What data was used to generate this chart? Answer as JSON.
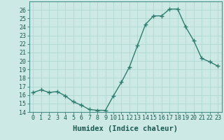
{
  "x": [
    0,
    1,
    2,
    3,
    4,
    5,
    6,
    7,
    8,
    9,
    10,
    11,
    12,
    13,
    14,
    15,
    16,
    17,
    18,
    19,
    20,
    21,
    22,
    23
  ],
  "y": [
    16.3,
    16.6,
    16.3,
    16.4,
    15.9,
    15.2,
    14.8,
    14.3,
    14.2,
    14.2,
    15.9,
    17.5,
    19.3,
    21.8,
    24.3,
    25.3,
    25.3,
    26.1,
    26.1,
    24.0,
    22.4,
    20.3,
    19.9,
    19.4
  ],
  "line_color": "#2e7d6e",
  "marker": "+",
  "markersize": 4,
  "linewidth": 1.0,
  "bg_color": "#cce9e5",
  "grid_color": "#aad4ce",
  "xlabel": "Humidex (Indice chaleur)",
  "ylim": [
    14,
    27
  ],
  "xlim": [
    -0.5,
    23.5
  ],
  "yticks": [
    14,
    15,
    16,
    17,
    18,
    19,
    20,
    21,
    22,
    23,
    24,
    25,
    26
  ],
  "xticks": [
    0,
    1,
    2,
    3,
    4,
    5,
    6,
    7,
    8,
    9,
    10,
    11,
    12,
    13,
    14,
    15,
    16,
    17,
    18,
    19,
    20,
    21,
    22,
    23
  ],
  "tick_color": "#1a5a50",
  "xlabel_color": "#1a5a50",
  "xlabel_fontsize": 7.5,
  "tick_fontsize": 6,
  "axis_color": "#4a9088",
  "spine_color": "#4a9088"
}
